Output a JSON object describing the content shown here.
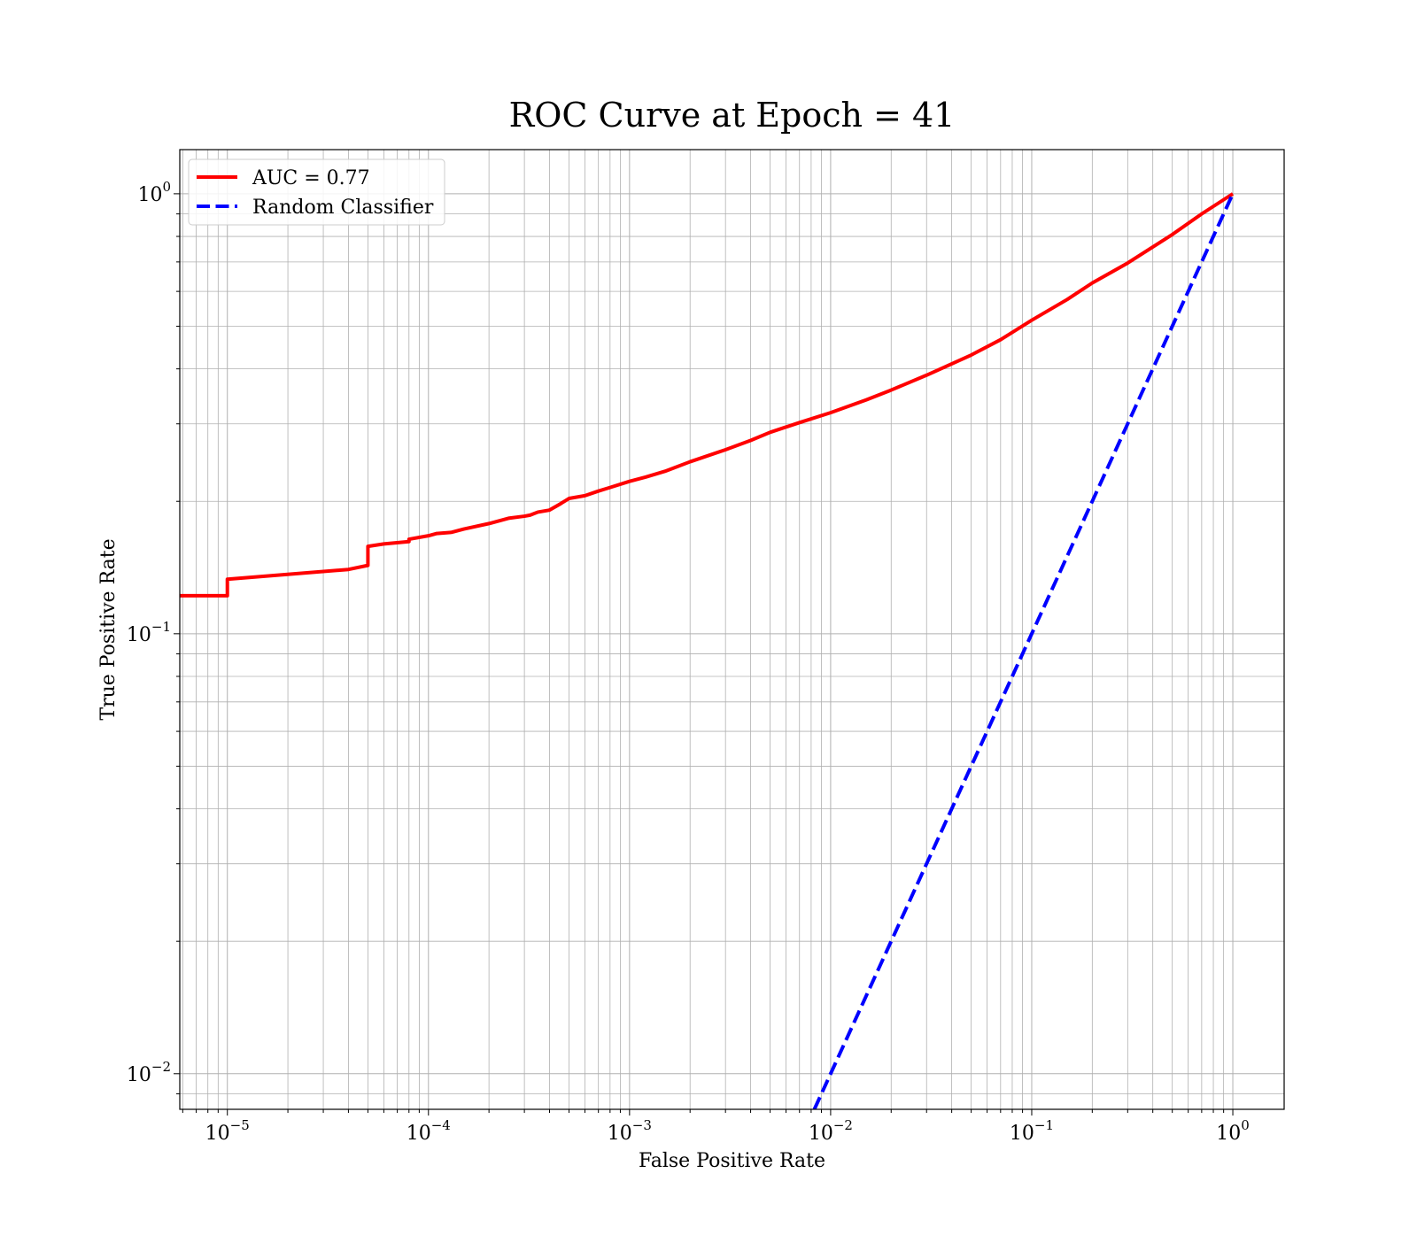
{
  "chart_data": {
    "type": "line",
    "title": "ROC Curve at Epoch = 41",
    "xlabel": "False Positive Rate",
    "ylabel": "True Positive Rate",
    "xscale": "log",
    "yscale": "log",
    "xlim": [
      5.8e-06,
      1.8
    ],
    "ylim": [
      0.0083,
      1.26
    ],
    "grid": true,
    "grid_which": "both",
    "legend_position": "top-left",
    "x_ticks": [
      {
        "value": 1e-05,
        "base": "10",
        "exp": "−5"
      },
      {
        "value": 0.0001,
        "base": "10",
        "exp": "−4"
      },
      {
        "value": 0.001,
        "base": "10",
        "exp": "−3"
      },
      {
        "value": 0.01,
        "base": "10",
        "exp": "−2"
      },
      {
        "value": 0.1,
        "base": "10",
        "exp": "−1"
      },
      {
        "value": 1,
        "base": "10",
        "exp": "0"
      }
    ],
    "y_ticks": [
      {
        "value": 0.01,
        "base": "10",
        "exp": "−2"
      },
      {
        "value": 0.1,
        "base": "10",
        "exp": "−1"
      },
      {
        "value": 1,
        "base": "10",
        "exp": "0"
      }
    ],
    "series": [
      {
        "name": "AUC = 0.77",
        "color": "#ff0000",
        "style": "solid",
        "x": [
          5.8e-06,
          1e-05,
          1e-05,
          4e-05,
          5e-05,
          5e-05,
          6e-05,
          8e-05,
          8e-05,
          0.0001,
          0.00011,
          0.00013,
          0.00015,
          0.0002,
          0.00025,
          0.0003,
          0.00032,
          0.00035,
          0.0004,
          0.00045,
          0.0005,
          0.0006,
          0.0007,
          0.0008,
          0.001,
          0.0012,
          0.0015,
          0.002,
          0.003,
          0.004,
          0.005,
          0.007,
          0.01,
          0.015,
          0.02,
          0.03,
          0.05,
          0.07,
          0.1,
          0.15,
          0.2,
          0.3,
          0.5,
          0.7,
          1.0
        ],
        "y": [
          0.122,
          0.122,
          0.133,
          0.14,
          0.143,
          0.158,
          0.16,
          0.162,
          0.164,
          0.167,
          0.169,
          0.17,
          0.173,
          0.178,
          0.183,
          0.185,
          0.186,
          0.189,
          0.191,
          0.197,
          0.203,
          0.206,
          0.211,
          0.215,
          0.222,
          0.227,
          0.234,
          0.246,
          0.262,
          0.275,
          0.287,
          0.302,
          0.318,
          0.34,
          0.358,
          0.387,
          0.43,
          0.466,
          0.516,
          0.575,
          0.627,
          0.696,
          0.808,
          0.9,
          1.0
        ]
      },
      {
        "name": "Random Classifier",
        "color": "#0000ff",
        "style": "dashed",
        "x": [
          0.0083,
          1.0
        ],
        "y": [
          0.0083,
          1.0
        ]
      }
    ]
  }
}
